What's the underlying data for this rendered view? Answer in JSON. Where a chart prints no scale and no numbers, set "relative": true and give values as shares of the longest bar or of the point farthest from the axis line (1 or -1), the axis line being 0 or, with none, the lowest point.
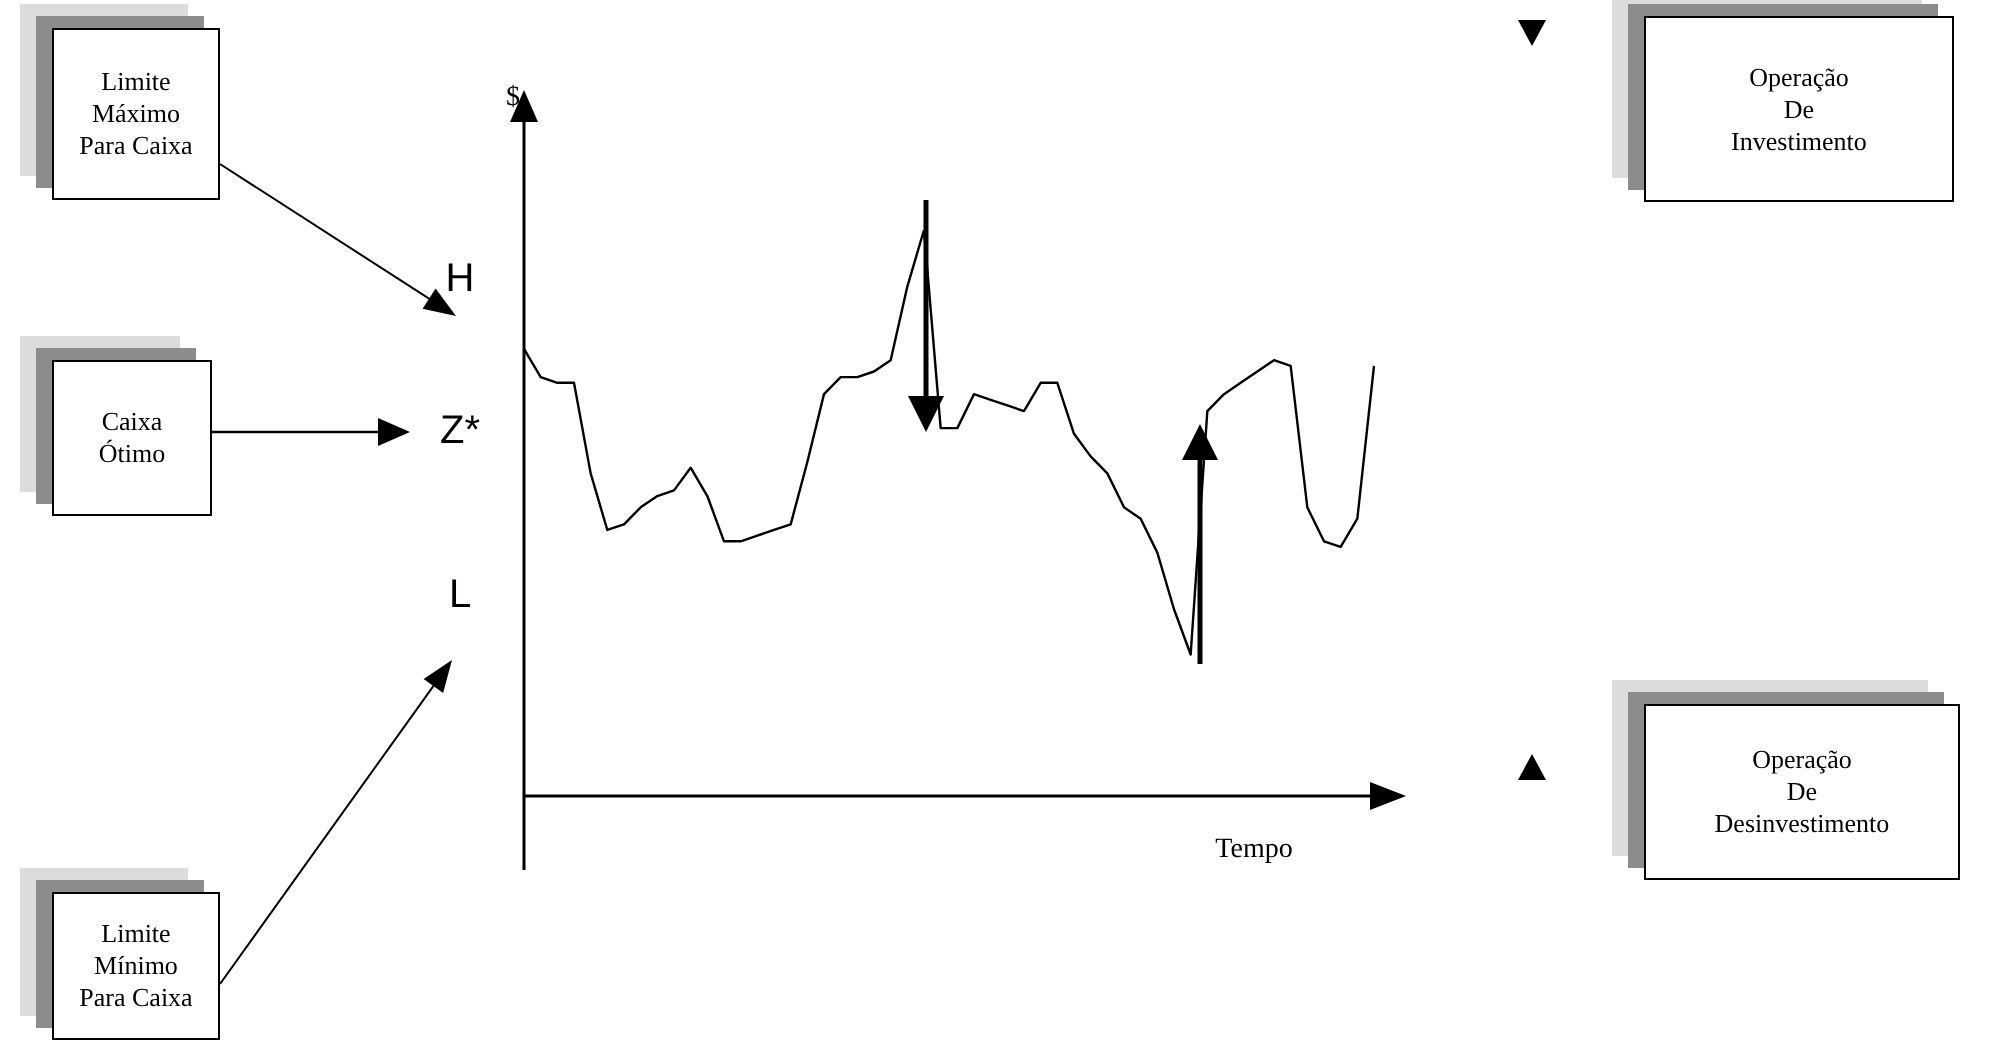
{
  "chart_data": {
    "type": "line",
    "relative": true,
    "ylabel": "$",
    "xlabel": "Tempo",
    "categories": [
      null,
      null,
      null,
      null,
      null,
      null,
      null,
      null,
      null,
      null,
      null,
      null,
      null,
      null,
      null,
      null,
      null,
      null,
      null,
      null,
      null,
      null,
      null,
      null,
      null,
      null,
      null,
      null,
      null,
      null,
      null,
      null,
      null,
      null,
      null,
      null,
      null,
      null,
      null,
      null,
      null,
      null,
      null,
      null,
      null,
      null,
      null,
      null,
      null,
      null,
      null,
      null
    ],
    "series": [
      {
        "color": "#000000",
        "values": [
          0.79,
          0.74,
          0.73,
          0.73,
          0.57,
          0.47,
          0.48,
          0.51,
          0.53,
          0.54,
          0.58,
          0.53,
          0.45,
          0.45,
          0.46,
          0.47,
          0.48,
          0.59,
          0.71,
          0.74,
          0.74,
          0.75,
          0.77,
          0.9,
          1,
          0.65,
          0.65,
          0.71,
          0.7,
          0.69,
          0.68,
          0.73,
          0.73,
          0.64,
          0.6,
          0.57,
          0.51,
          0.49,
          0.43,
          0.33,
          0.25,
          0.68,
          0.71,
          0.73,
          0.75,
          0.77,
          0.76,
          0.51,
          0.45,
          0.44,
          0.49,
          0.76
        ]
      }
    ],
    "annotations": [
      "H",
      "Z*",
      "L",
      "Limite Máximo Para Caixa",
      "Caixa Ótimo",
      "Limite Mínimo Para Caixa",
      "Operação De Investimento",
      "Operação De Desinvestimento"
    ]
  }
}
